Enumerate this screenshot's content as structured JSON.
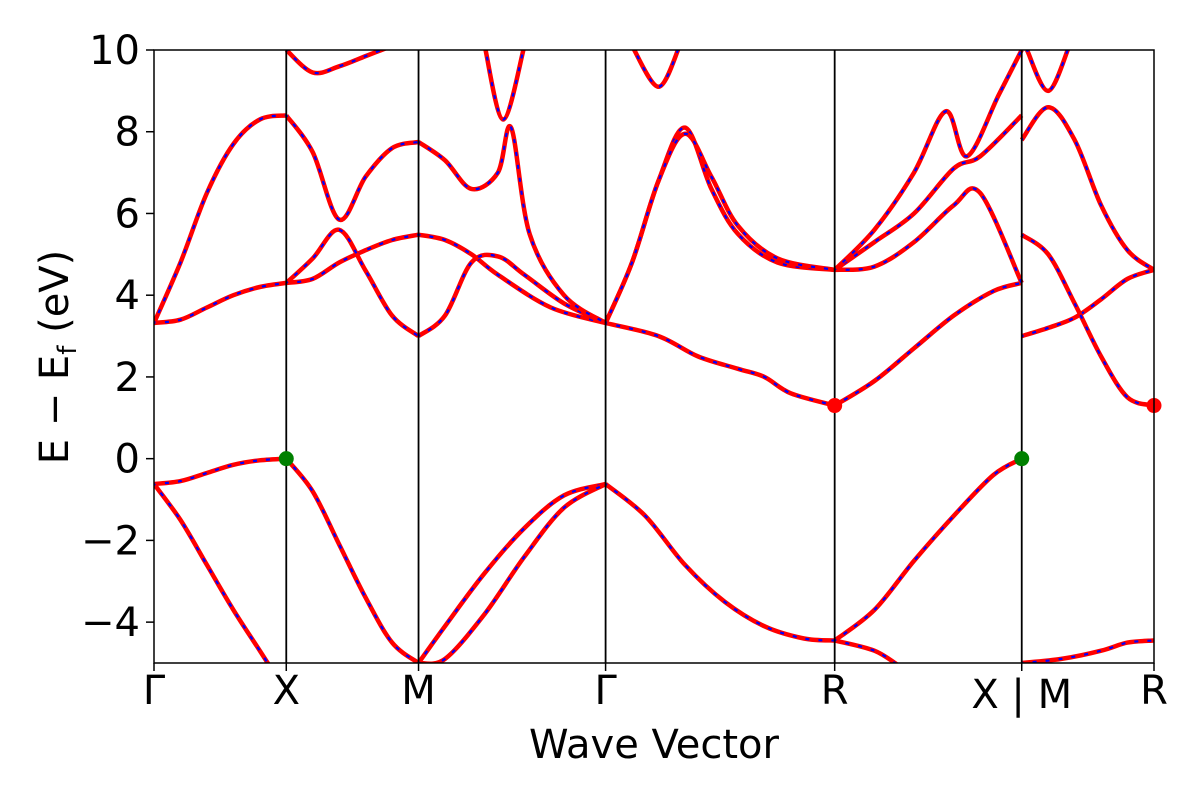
{
  "chart_data": {
    "type": "line",
    "title": "",
    "xlabel": "Wave Vector",
    "ylabel": "E − E",
    "ylabel_subscript": "f",
    "ylabel_unit": " (eV)",
    "ylim": [
      -5,
      10
    ],
    "yticks": [
      -4,
      -2,
      0,
      2,
      4,
      6,
      8,
      10
    ],
    "ytick_labels": [
      "−4",
      "−2",
      "0",
      "2",
      "4",
      "6",
      "8",
      "10"
    ],
    "k_path": {
      "segments": [
        {
          "from": "Γ",
          "to": "X",
          "length": 0.5
        },
        {
          "from": "X",
          "to": "M",
          "length": 0.5
        },
        {
          "from": "M",
          "to": "Γ",
          "length": 0.7071
        },
        {
          "from": "Γ",
          "to": "R",
          "length": 0.866
        },
        {
          "from": "R",
          "to": "X",
          "length": 0.7071
        },
        {
          "from": "M",
          "to": "R",
          "length": 0.5
        }
      ],
      "discontinuity_after_segment": 4
    },
    "xtick_labels": [
      "Γ",
      "X",
      "M",
      "Γ",
      "R",
      "X | M",
      "R"
    ],
    "grid": false,
    "legend": "none",
    "colors": {
      "spin_up": "#ff0000",
      "spin_down": "#0000ff",
      "vbm": "#008000",
      "cbm": "#ff0000"
    },
    "bands": [
      {
        "segment": 0,
        "points": [
          [
            0,
            -0.62
          ],
          [
            0.1,
            -0.55
          ],
          [
            0.2,
            -0.35
          ],
          [
            0.3,
            -0.15
          ],
          [
            0.4,
            -0.04
          ],
          [
            0.5,
            0
          ]
        ]
      },
      {
        "segment": 0,
        "points": [
          [
            0,
            -0.62
          ],
          [
            0.1,
            -1.5
          ],
          [
            0.2,
            -2.6
          ],
          [
            0.3,
            -3.7
          ],
          [
            0.4,
            -4.7
          ],
          [
            0.45,
            -5.2
          ]
        ]
      },
      {
        "segment": 0,
        "points": [
          [
            0,
            3.32
          ],
          [
            0.1,
            3.4
          ],
          [
            0.2,
            3.7
          ],
          [
            0.3,
            4.0
          ],
          [
            0.4,
            4.2
          ],
          [
            0.5,
            4.3
          ]
        ]
      },
      {
        "segment": 0,
        "points": [
          [
            0,
            3.32
          ],
          [
            0.1,
            4.8
          ],
          [
            0.2,
            6.5
          ],
          [
            0.3,
            7.7
          ],
          [
            0.4,
            8.3
          ],
          [
            0.5,
            8.4
          ]
        ]
      },
      {
        "segment": 1,
        "points": [
          [
            0,
            0
          ],
          [
            0.1,
            -0.8
          ],
          [
            0.2,
            -2.1
          ],
          [
            0.3,
            -3.4
          ],
          [
            0.4,
            -4.5
          ],
          [
            0.5,
            -5.0
          ]
        ]
      },
      {
        "segment": 1,
        "points": [
          [
            0,
            4.3
          ],
          [
            0.1,
            4.4
          ],
          [
            0.2,
            4.8
          ],
          [
            0.3,
            5.1
          ],
          [
            0.4,
            5.35
          ],
          [
            0.5,
            5.48
          ]
        ]
      },
      {
        "segment": 1,
        "points": [
          [
            0,
            4.3
          ],
          [
            0.1,
            4.9
          ],
          [
            0.2,
            5.6
          ],
          [
            0.3,
            4.6
          ],
          [
            0.4,
            3.5
          ],
          [
            0.5,
            3.0
          ]
        ]
      },
      {
        "segment": 1,
        "points": [
          [
            0,
            8.4
          ],
          [
            0.1,
            7.5
          ],
          [
            0.2,
            5.85
          ],
          [
            0.3,
            6.9
          ],
          [
            0.4,
            7.6
          ],
          [
            0.5,
            7.75
          ]
        ]
      },
      {
        "segment": 1,
        "points": [
          [
            0,
            10.0
          ],
          [
            0.1,
            9.45
          ],
          [
            0.2,
            9.6
          ],
          [
            0.3,
            9.85
          ],
          [
            0.4,
            10.1
          ]
        ]
      },
      {
        "segment": 2,
        "points": [
          [
            0,
            -5.0
          ],
          [
            0.1,
            -4.1
          ],
          [
            0.25,
            -2.8
          ],
          [
            0.4,
            -1.7
          ],
          [
            0.55,
            -0.9
          ],
          [
            0.7071,
            -0.62
          ]
        ]
      },
      {
        "segment": 2,
        "points": [
          [
            0,
            -5.0
          ],
          [
            0.1,
            -4.9
          ],
          [
            0.25,
            -3.8
          ],
          [
            0.4,
            -2.4
          ],
          [
            0.55,
            -1.2
          ],
          [
            0.7071,
            -0.62
          ]
        ]
      },
      {
        "segment": 2,
        "points": [
          [
            0,
            5.48
          ],
          [
            0.1,
            5.35
          ],
          [
            0.2,
            5.0
          ],
          [
            0.3,
            4.5
          ],
          [
            0.5,
            3.7
          ],
          [
            0.7071,
            3.32
          ]
        ]
      },
      {
        "segment": 2,
        "points": [
          [
            0,
            3.0
          ],
          [
            0.1,
            3.5
          ],
          [
            0.2,
            4.8
          ],
          [
            0.3,
            4.95
          ],
          [
            0.4,
            4.5
          ],
          [
            0.55,
            3.8
          ],
          [
            0.7071,
            3.32
          ]
        ]
      },
      {
        "segment": 2,
        "points": [
          [
            0,
            7.75
          ],
          [
            0.1,
            7.3
          ],
          [
            0.2,
            6.6
          ],
          [
            0.3,
            7.0
          ],
          [
            0.35,
            8.1
          ],
          [
            0.42,
            5.5
          ],
          [
            0.55,
            4.0
          ],
          [
            0.7071,
            3.32
          ]
        ]
      },
      {
        "segment": 2,
        "points": [
          [
            0.25,
            10.1
          ],
          [
            0.32,
            8.3
          ],
          [
            0.4,
            10.1
          ]
        ]
      },
      {
        "segment": 3,
        "points": [
          [
            0,
            -0.62
          ],
          [
            0.15,
            -1.4
          ],
          [
            0.3,
            -2.6
          ],
          [
            0.45,
            -3.5
          ],
          [
            0.6,
            -4.1
          ],
          [
            0.75,
            -4.4
          ],
          [
            0.866,
            -4.45
          ]
        ]
      },
      {
        "segment": 3,
        "points": [
          [
            0,
            3.32
          ],
          [
            0.2,
            3.0
          ],
          [
            0.35,
            2.5
          ],
          [
            0.5,
            2.2
          ],
          [
            0.6,
            2.0
          ],
          [
            0.7,
            1.6
          ],
          [
            0.866,
            1.3
          ]
        ]
      },
      {
        "segment": 3,
        "points": [
          [
            0,
            3.32
          ],
          [
            0.1,
            4.8
          ],
          [
            0.2,
            6.8
          ],
          [
            0.3,
            8.1
          ],
          [
            0.4,
            6.6
          ],
          [
            0.5,
            5.5
          ],
          [
            0.65,
            4.8
          ],
          [
            0.866,
            4.62
          ]
        ]
      },
      {
        "segment": 3,
        "points": [
          [
            0,
            3.32
          ],
          [
            0.1,
            4.8
          ],
          [
            0.2,
            6.8
          ],
          [
            0.3,
            7.95
          ],
          [
            0.4,
            6.9
          ],
          [
            0.5,
            5.7
          ],
          [
            0.65,
            4.9
          ],
          [
            0.866,
            4.62
          ]
        ]
      },
      {
        "segment": 3,
        "points": [
          [
            0.1,
            10.1
          ],
          [
            0.2,
            9.1
          ],
          [
            0.28,
            10.1
          ]
        ]
      },
      {
        "segment": 4,
        "points": [
          [
            0,
            -4.45
          ],
          [
            0.15,
            -4.7
          ],
          [
            0.25,
            -5.1
          ]
        ]
      },
      {
        "segment": 4,
        "points": [
          [
            0,
            1.3
          ],
          [
            0.15,
            1.9
          ],
          [
            0.3,
            2.7
          ],
          [
            0.45,
            3.5
          ],
          [
            0.6,
            4.1
          ],
          [
            0.7071,
            4.3
          ]
        ]
      },
      {
        "segment": 4,
        "points": [
          [
            0,
            -4.45
          ],
          [
            0.15,
            -3.7
          ],
          [
            0.3,
            -2.5
          ],
          [
            0.45,
            -1.4
          ],
          [
            0.6,
            -0.4
          ],
          [
            0.7071,
            0
          ]
        ]
      },
      {
        "segment": 4,
        "points": [
          [
            0,
            4.62
          ],
          [
            0.15,
            4.7
          ],
          [
            0.3,
            5.3
          ],
          [
            0.45,
            6.2
          ],
          [
            0.55,
            6.5
          ],
          [
            0.7071,
            4.3
          ]
        ]
      },
      {
        "segment": 4,
        "points": [
          [
            0,
            4.62
          ],
          [
            0.15,
            5.3
          ],
          [
            0.3,
            6.0
          ],
          [
            0.45,
            7.1
          ],
          [
            0.55,
            7.4
          ],
          [
            0.7071,
            8.4
          ]
        ]
      },
      {
        "segment": 4,
        "points": [
          [
            0,
            4.62
          ],
          [
            0.15,
            5.6
          ],
          [
            0.3,
            7.0
          ],
          [
            0.42,
            8.5
          ],
          [
            0.5,
            7.4
          ],
          [
            0.62,
            8.9
          ],
          [
            0.7071,
            10.0
          ]
        ]
      },
      {
        "segment": 5,
        "points": [
          [
            0,
            -5.0
          ],
          [
            0.15,
            -4.9
          ],
          [
            0.3,
            -4.7
          ],
          [
            0.4,
            -4.5
          ],
          [
            0.5,
            -4.45
          ]
        ]
      },
      {
        "segment": 5,
        "points": [
          [
            0,
            3.0
          ],
          [
            0.1,
            3.2
          ],
          [
            0.2,
            3.45
          ],
          [
            0.3,
            3.9
          ],
          [
            0.4,
            4.4
          ],
          [
            0.5,
            4.62
          ]
        ]
      },
      {
        "segment": 5,
        "points": [
          [
            0,
            5.48
          ],
          [
            0.1,
            5.0
          ],
          [
            0.2,
            3.8
          ],
          [
            0.3,
            2.5
          ],
          [
            0.4,
            1.5
          ],
          [
            0.5,
            1.3
          ]
        ]
      },
      {
        "segment": 5,
        "points": [
          [
            0,
            7.8
          ],
          [
            0.1,
            8.6
          ],
          [
            0.2,
            7.8
          ],
          [
            0.3,
            6.2
          ],
          [
            0.4,
            5.1
          ],
          [
            0.5,
            4.62
          ]
        ]
      },
      {
        "segment": 5,
        "points": [
          [
            0.02,
            10.0
          ],
          [
            0.1,
            9.0
          ],
          [
            0.18,
            10.1
          ]
        ]
      }
    ],
    "markers": [
      {
        "kind": "vbm",
        "segment": 1,
        "k": 0,
        "e": 0
      },
      {
        "kind": "vbm",
        "segment": 5,
        "k": 0,
        "e": 0
      },
      {
        "kind": "cbm",
        "segment": 4,
        "k": 0,
        "e": 1.3
      },
      {
        "kind": "cbm",
        "segment": 5,
        "k": 0.5,
        "e": 1.3
      }
    ]
  }
}
